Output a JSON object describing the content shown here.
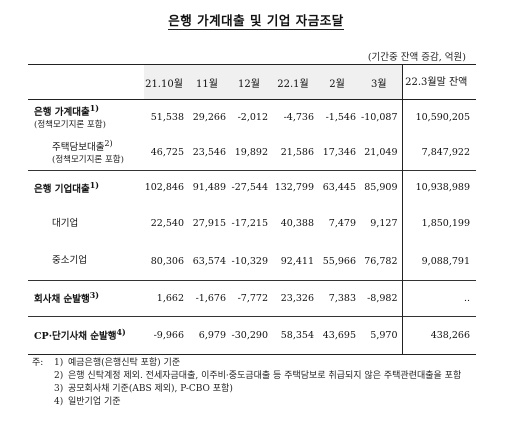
{
  "title": "은행 가계대출 및 기업 자금조달",
  "unit": "(기간중 잔액 증감, 억원)",
  "columns": [
    "21.10월",
    "11월",
    "12월",
    "22.1월",
    "2월",
    "3월",
    "22.3월말 잔액"
  ],
  "rows": [
    {
      "label": "은행 가계대출",
      "sup": "1)",
      "sub": "(정책모기지론 포함)",
      "values": [
        "51,538",
        "29,266",
        "-2,012",
        "-4,736",
        "-1,546",
        "-10,087",
        "10,590,205"
      ]
    },
    {
      "label": "주택담보대출",
      "sup": "2)",
      "sub": "(정책모기지론 포함)",
      "values": [
        "46,725",
        "23,546",
        "19,892",
        "21,586",
        "17,346",
        "21,049",
        "7,847,922"
      ]
    },
    {
      "label": "은행 기업대출",
      "sup": "1)",
      "sub": "",
      "values": [
        "102,846",
        "91,489",
        "-27,544",
        "132,799",
        "63,445",
        "85,909",
        "10,938,989"
      ]
    },
    {
      "label": "대기업",
      "sup": "",
      "sub": "",
      "values": [
        "22,540",
        "27,915",
        "-17,215",
        "40,388",
        "7,479",
        "9,127",
        "1,850,199"
      ]
    },
    {
      "label": "중소기업",
      "sup": "",
      "sub": "",
      "values": [
        "80,306",
        "63,574",
        "-10,329",
        "92,411",
        "55,966",
        "76,782",
        "9,088,791"
      ]
    },
    {
      "label": "회사채 순발행",
      "sup": "3)",
      "sub": "",
      "values": [
        "1,662",
        "-1,676",
        "-7,772",
        "23,326",
        "7,383",
        "-8,982",
        ".."
      ]
    },
    {
      "label": "CP·단기사채 순발행",
      "sup": "4)",
      "sub": "",
      "values": [
        "-9,966",
        "6,979",
        "-30,290",
        "58,354",
        "43,695",
        "5,970",
        "438,266"
      ]
    }
  ],
  "notes": {
    "prefix": "주:",
    "items": [
      {
        "num": "1)",
        "text": "예금은행(은행신탁 포함) 기준"
      },
      {
        "num": "2)",
        "text": "은행 신탁계정 제외. 전세자금대출, 이주비·중도금대출 등 주택담보로 취급되지 않은 주택관련대출을 포함"
      },
      {
        "num": "3)",
        "text": "공모회사채 기준(ABS 제외), P-CBO 포함)"
      },
      {
        "num": "4)",
        "text": "일반기업 기준"
      }
    ]
  }
}
